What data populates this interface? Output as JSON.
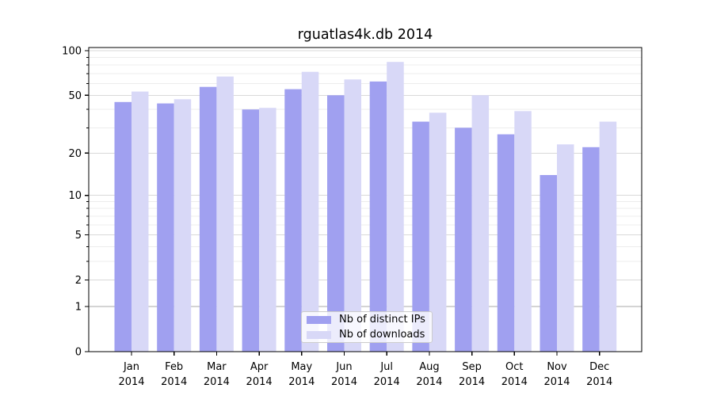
{
  "title": "rguatlas4k.db 2014",
  "legend": {
    "entries": [
      {
        "label": "Nb of distinct IPs",
        "color": "#a0a0f0"
      },
      {
        "label": "Nb of downloads",
        "color": "#d8d8f7"
      }
    ],
    "position": "lower center"
  },
  "chart_data": {
    "type": "bar",
    "title": "rguatlas4k.db 2014",
    "categories": [
      "Jan 2014",
      "Feb 2014",
      "Mar 2014",
      "Apr 2014",
      "May 2014",
      "Jun 2014",
      "Jul 2014",
      "Aug 2014",
      "Sep 2014",
      "Oct 2014",
      "Nov 2014",
      "Dec 2014"
    ],
    "series": [
      {
        "name": "Nb of distinct IPs",
        "color": "#a0a0f0",
        "values": [
          45,
          44,
          57,
          40,
          55,
          50,
          62,
          33,
          30,
          27,
          14,
          22
        ]
      },
      {
        "name": "Nb of downloads",
        "color": "#d8d8f7",
        "values": [
          53,
          47,
          67,
          41,
          72,
          64,
          84,
          38,
          50,
          39,
          23,
          33
        ]
      }
    ],
    "xlabel": "",
    "ylabel": "",
    "yscale": "log1p",
    "ylim": [
      0,
      105
    ],
    "y_major_ticks": [
      0,
      1,
      2,
      5,
      10,
      20,
      50,
      100
    ],
    "y_minor_ticks": [
      3,
      4,
      6,
      7,
      8,
      9,
      30,
      40,
      60,
      70,
      80,
      90
    ],
    "grid": true,
    "legend_position": "lower center",
    "colors": {
      "axis": "#000000",
      "grid_major": "#d9d9d9",
      "grid_minor": "#ececec",
      "grid_unit_line": "#a9a9a9",
      "tick_label": "#000000"
    }
  }
}
